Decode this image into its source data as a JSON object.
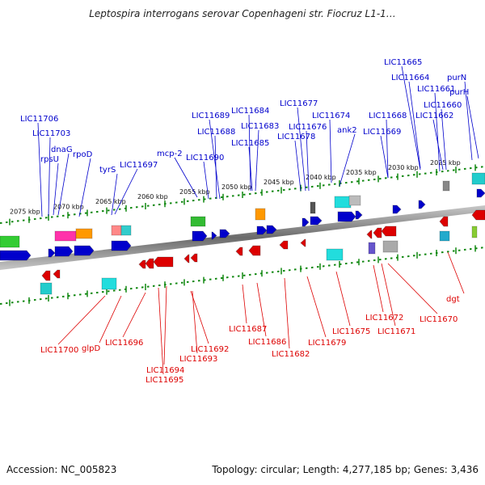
{
  "title": "Leptospira interrogans serovar Copenhageni str. Fiocruz L1-1…",
  "footer": {
    "accession": "Accession: NC_005823",
    "summary": "Topology: circular; Length: 4,277,185 bp; Genes: 3,436"
  },
  "colors": {
    "forward": "#0000cc",
    "reverse": "#dd0000",
    "backbone": "#888888",
    "ticks": "#118811"
  },
  "kbp_labels": [
    "2075 kbp",
    "2070 kbp",
    "2065 kbp",
    "2060 kbp",
    "2055 kbp",
    "2050 kbp",
    "2045 kbp",
    "2040 kbp",
    "2035 kbp",
    "2030 kbp",
    "2025 kbp"
  ],
  "forward_genes": [
    "LIC11706",
    "LIC11703",
    "rpsU",
    "dnaG",
    "rpoD",
    "tyrS",
    "LIC11697",
    "mcp-2",
    "LIC11690",
    "LIC11689",
    "LIC11688",
    "LIC11684",
    "LIC11683",
    "LIC11685",
    "LIC11677",
    "LIC11676",
    "LIC11678",
    "LIC11674",
    "ank2",
    "LIC11668",
    "LIC11669",
    "LIC11665",
    "LIC11664",
    "LIC11661",
    "LIC11662",
    "LIC11660",
    "purN",
    "purH"
  ],
  "reverse_genes": [
    "LIC11700",
    "glpD",
    "LIC11696",
    "LIC11694",
    "LIC11695",
    "LIC11692",
    "LIC11693",
    "LIC11687",
    "LIC11686",
    "LIC11682",
    "LIC11679",
    "LIC11675",
    "LIC11672",
    "LIC11671",
    "LIC11670",
    "dgt"
  ]
}
